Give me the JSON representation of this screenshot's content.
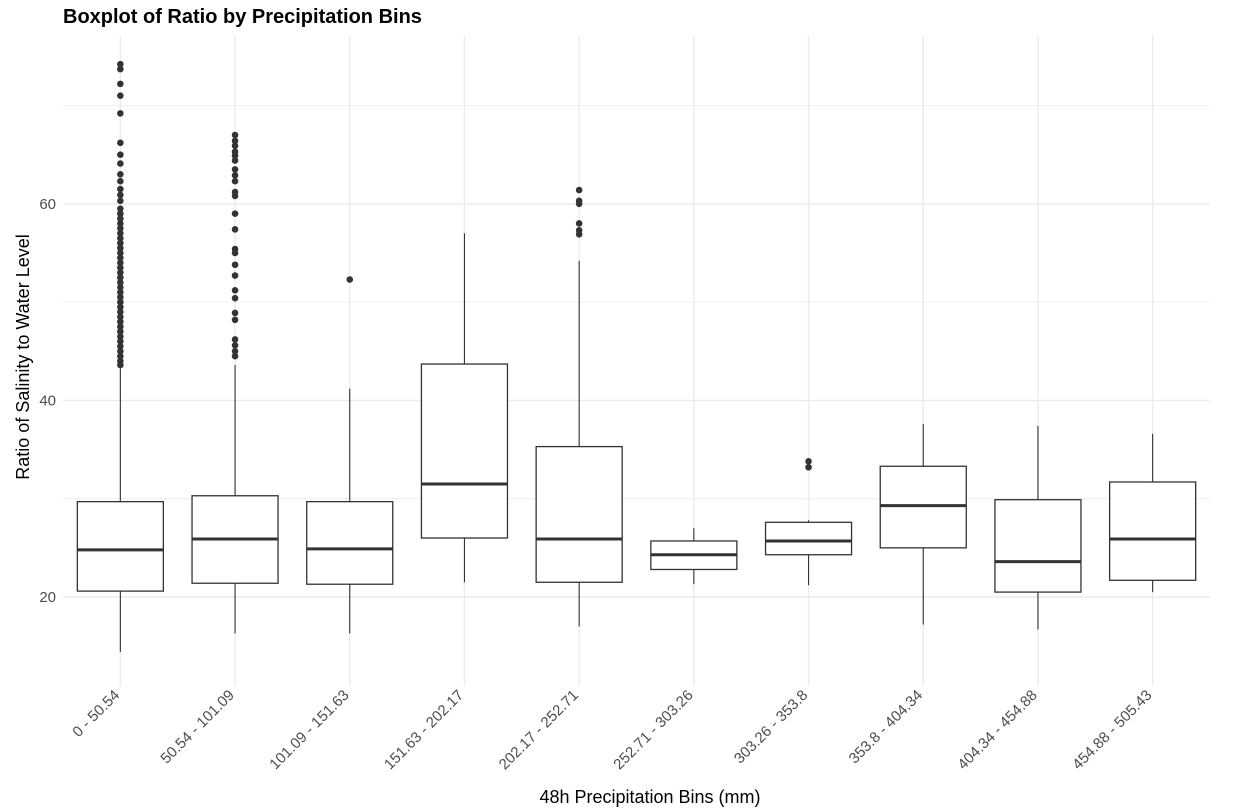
{
  "chart_data": {
    "type": "boxplot",
    "title": "Boxplot of Ratio by Precipitation Bins",
    "xlabel": "48h Precipitation Bins (mm)",
    "ylabel": "Ratio of Salinity to Water Level",
    "ylim": [
      11.5,
      77
    ],
    "y_ticks": [
      20,
      40,
      60
    ],
    "grid": true,
    "box_stroke_color": "#333333",
    "grid_color": "#ebebeb",
    "categories": [
      "0 - 50.54",
      "50.54 - 101.09",
      "101.09 - 151.63",
      "151.63 - 202.17",
      "202.17 - 252.71",
      "252.71 - 303.26",
      "303.26 - 353.8",
      "353.8 - 404.34",
      "404.34 - 454.88",
      "454.88 - 505.43"
    ],
    "boxes": [
      {
        "whisker_low": 14.4,
        "q1": 20.6,
        "median": 24.8,
        "q3": 29.7,
        "whisker_high": 43.4,
        "outliers": [
          43.6,
          44.0,
          44.5,
          45.0,
          45.5,
          46.0,
          46.5,
          47.0,
          47.5,
          48.0,
          48.5,
          49.0,
          49.5,
          50.0,
          50.5,
          51.0,
          51.5,
          52.0,
          52.5,
          53.0,
          53.5,
          54.0,
          54.5,
          55.0,
          55.5,
          56.0,
          56.5,
          57.0,
          57.5,
          58.0,
          58.5,
          59.0,
          59.5,
          60.3,
          60.9,
          61.5,
          62.3,
          63.0,
          64.1,
          65.0,
          66.2,
          69.2,
          71.0,
          72.2,
          73.7,
          74.2
        ]
      },
      {
        "whisker_low": 16.3,
        "q1": 21.4,
        "median": 25.9,
        "q3": 30.3,
        "whisker_high": 43.6,
        "outliers": [
          44.5,
          45.0,
          45.6,
          46.2,
          48.2,
          48.9,
          50.4,
          51.2,
          52.7,
          53.8,
          55.0,
          55.4,
          57.4,
          59.0,
          60.8,
          61.2,
          62.3,
          62.9,
          63.5,
          64.4,
          64.9,
          65.3,
          65.9,
          66.4,
          67.0
        ]
      },
      {
        "whisker_low": 16.3,
        "q1": 21.3,
        "median": 24.9,
        "q3": 29.7,
        "whisker_high": 41.2,
        "outliers": [
          52.3
        ]
      },
      {
        "whisker_low": 21.5,
        "q1": 26.0,
        "median": 31.5,
        "q3": 43.7,
        "whisker_high": 57.0,
        "outliers": []
      },
      {
        "whisker_low": 17.0,
        "q1": 21.5,
        "median": 25.9,
        "q3": 35.3,
        "whisker_high": 54.2,
        "outliers": [
          56.9,
          57.3,
          58.0,
          60.0,
          60.3,
          61.4
        ]
      },
      {
        "whisker_low": 21.3,
        "q1": 22.8,
        "median": 24.3,
        "q3": 25.7,
        "whisker_high": 27.0,
        "outliers": []
      },
      {
        "whisker_low": 21.2,
        "q1": 24.3,
        "median": 25.7,
        "q3": 27.6,
        "whisker_high": 27.8,
        "outliers": [
          33.2,
          33.8
        ]
      },
      {
        "whisker_low": 17.2,
        "q1": 25.0,
        "median": 29.3,
        "q3": 33.3,
        "whisker_high": 37.6,
        "outliers": []
      },
      {
        "whisker_low": 16.7,
        "q1": 20.5,
        "median": 23.6,
        "q3": 29.9,
        "whisker_high": 37.4,
        "outliers": []
      },
      {
        "whisker_low": 20.5,
        "q1": 21.7,
        "median": 25.9,
        "q3": 31.7,
        "whisker_high": 36.6,
        "outliers": []
      }
    ]
  }
}
